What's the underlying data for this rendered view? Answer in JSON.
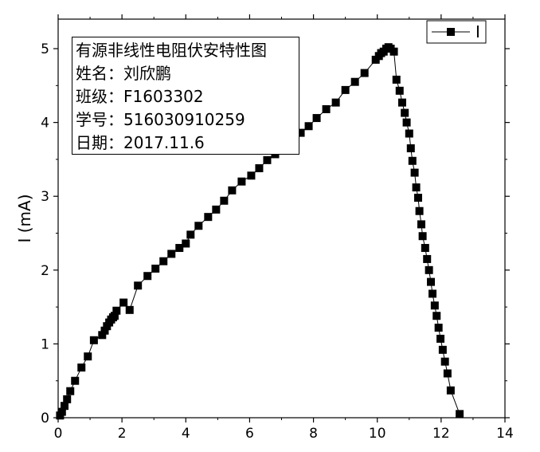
{
  "chart_data": {
    "type": "line",
    "title": "",
    "xlabel": "",
    "ylabel": "I (mA)",
    "xlim": [
      0,
      14
    ],
    "ylim": [
      0,
      5.4
    ],
    "xticks": [
      "0",
      "2",
      "4",
      "6",
      "8",
      "10",
      "12",
      "14"
    ],
    "yticks": [
      "0",
      "1",
      "2",
      "3",
      "4",
      "5"
    ],
    "grid": false,
    "legend_position": "top-right",
    "marker": "square",
    "series": [
      {
        "name": "I",
        "color": "#000000",
        "x": [
          0.06,
          0.12,
          0.2,
          0.28,
          0.38,
          0.53,
          0.73,
          0.93,
          1.12,
          1.38,
          1.46,
          1.53,
          1.6,
          1.66,
          1.72,
          1.77,
          1.83,
          2.05,
          2.24,
          2.5,
          2.8,
          3.05,
          3.3,
          3.55,
          3.8,
          4.0,
          4.15,
          4.4,
          4.7,
          4.95,
          5.2,
          5.45,
          5.75,
          6.05,
          6.3,
          6.55,
          6.8,
          7.05,
          7.3,
          7.6,
          7.85,
          8.1,
          8.4,
          8.7,
          9.0,
          9.3,
          9.6,
          9.95,
          10.05,
          10.12,
          10.2,
          10.28,
          10.35,
          10.42,
          10.52,
          10.6,
          10.7,
          10.78,
          10.86,
          10.92,
          11.0,
          11.05,
          11.1,
          11.17,
          11.22,
          11.28,
          11.32,
          11.38,
          11.42,
          11.5,
          11.56,
          11.62,
          11.68,
          11.73,
          11.8,
          11.86,
          11.92,
          11.98,
          12.05,
          12.12,
          12.2,
          12.3,
          12.58
        ],
        "y": [
          0.03,
          0.08,
          0.16,
          0.25,
          0.36,
          0.5,
          0.68,
          0.83,
          1.05,
          1.12,
          1.18,
          1.24,
          1.29,
          1.33,
          1.36,
          1.38,
          1.45,
          1.56,
          1.46,
          1.79,
          1.92,
          2.02,
          2.12,
          2.22,
          2.3,
          2.36,
          2.48,
          2.6,
          2.72,
          2.82,
          2.94,
          3.08,
          3.2,
          3.28,
          3.38,
          3.49,
          3.57,
          3.66,
          3.76,
          3.86,
          3.95,
          4.06,
          4.18,
          4.27,
          4.44,
          4.55,
          4.67,
          4.85,
          4.9,
          4.94,
          4.96,
          5.0,
          5.02,
          5.0,
          4.96,
          4.58,
          4.43,
          4.27,
          4.13,
          4.0,
          3.85,
          3.65,
          3.48,
          3.32,
          3.12,
          2.98,
          2.8,
          2.62,
          2.46,
          2.3,
          2.15,
          2.0,
          1.84,
          1.68,
          1.52,
          1.38,
          1.22,
          1.07,
          0.92,
          0.76,
          0.6,
          0.37,
          0.05
        ]
      }
    ]
  },
  "info_box": {
    "lines": [
      "有源非线性电阻伏安特性图",
      "姓名：刘欣鹏",
      "班级：F1603302",
      "学号：516030910259",
      "日期：2017.11.6"
    ]
  }
}
